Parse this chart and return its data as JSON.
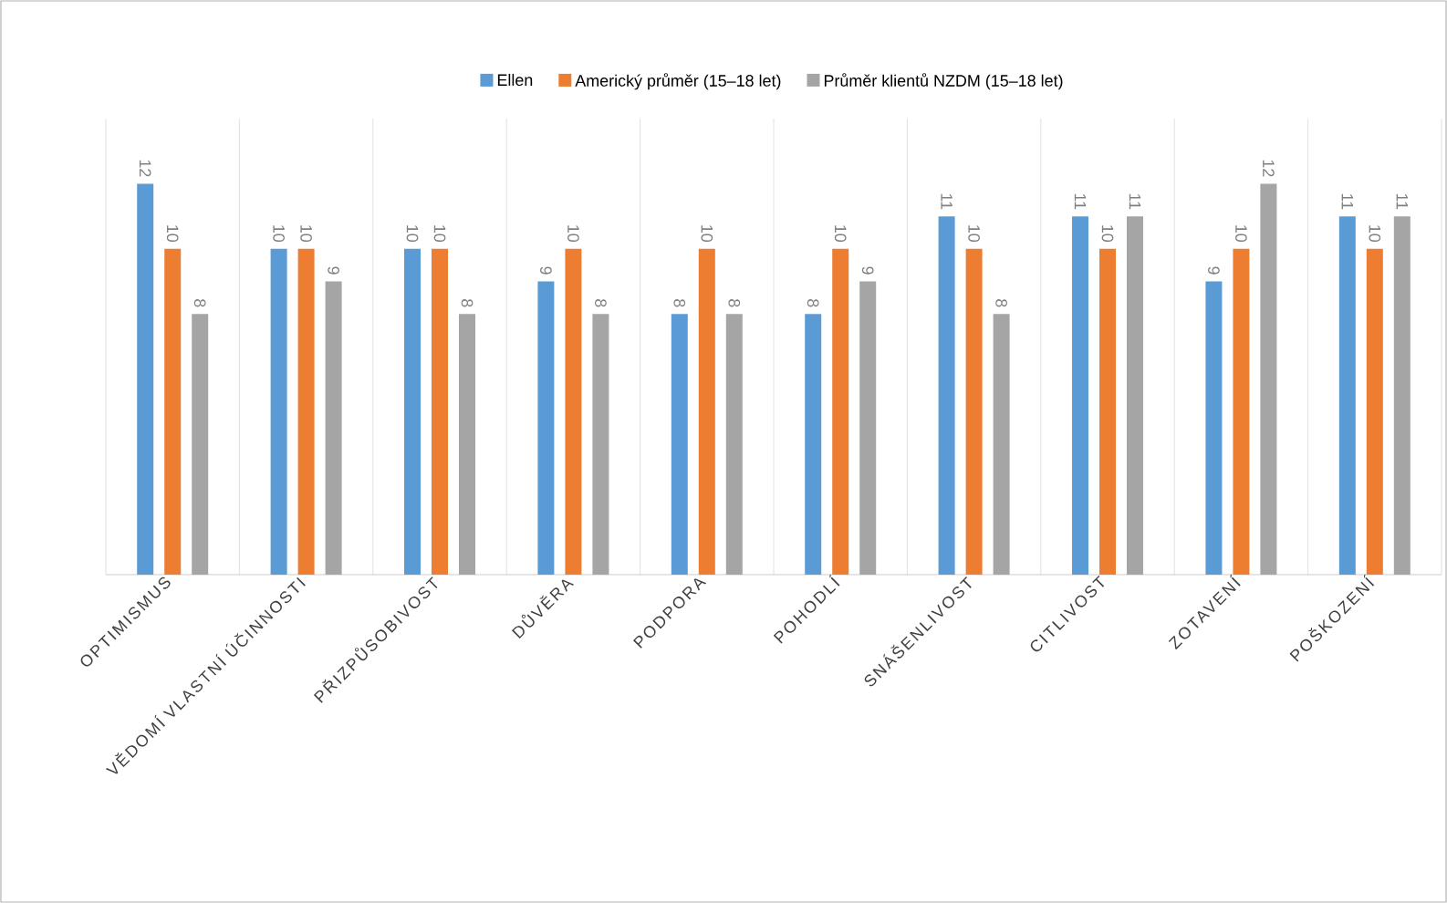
{
  "chart_data": {
    "type": "bar",
    "categories": [
      "OPTIMISMUS",
      "VĚDOMÍ VLASTNÍ ÚČINNOSTI",
      "PŘIZPŮSOBIVOST",
      "DŮVĚRA",
      "PODPORA",
      "POHODLÍ",
      "SNÁŠENLIVOST",
      "CITLIVOST",
      "ZOTAVENÍ",
      "POŠKOZENÍ"
    ],
    "series": [
      {
        "name": "Ellen",
        "color": "#5b9bd5",
        "values": [
          12,
          10,
          10,
          9,
          8,
          8,
          11,
          11,
          9,
          11
        ]
      },
      {
        "name": "Americký průměr (15–18 let)",
        "color": "#ed7d31",
        "values": [
          10,
          10,
          10,
          10,
          10,
          10,
          10,
          10,
          10,
          10
        ]
      },
      {
        "name": "Průměr klientů NZDM (15–18 let)",
        "color": "#a5a5a5",
        "values": [
          8,
          9,
          8,
          8,
          8,
          9,
          8,
          11,
          12,
          11
        ]
      }
    ],
    "ylim": [
      0,
      14
    ],
    "tick_labels": "x",
    "data_labels": true,
    "grid": "x",
    "legend": "top"
  }
}
